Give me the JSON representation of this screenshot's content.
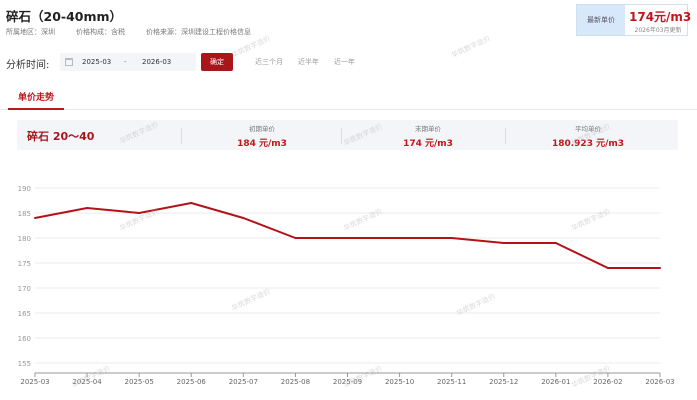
{
  "header": {
    "title": "碎石（20-40mm）",
    "region_label": "所属地区：深圳",
    "price_composition": "价格构成：含税",
    "price_source": "价格来源：深圳建设工程价格信息"
  },
  "latest_price": {
    "label": "最新单价",
    "value": "174元/m3",
    "updated": "2026年03月更新"
  },
  "filter": {
    "label": "分析时间:",
    "start": "2025-03",
    "separator": "-",
    "end": "2026-03",
    "confirm_label": "确定",
    "quick_ranges": [
      "近三个月",
      "近半年",
      "近一年"
    ]
  },
  "tabs": [
    {
      "label": "单价走势",
      "active": true
    }
  ],
  "stats": {
    "material_name": "碎石 20～40",
    "items": [
      {
        "label": "初期单价",
        "value": "184 元/m3"
      },
      {
        "label": "末期单价",
        "value": "174 元/m3"
      },
      {
        "label": "平均单价",
        "value": "180.923 元/m3"
      }
    ]
  },
  "watermark": "华筑数字造价",
  "colors": {
    "accent": "#c0161b",
    "line": "#b31218",
    "grid": "#ebebeb"
  },
  "chart_data": {
    "type": "line",
    "title": "",
    "xlabel": "",
    "ylabel": "",
    "x": [
      "2025-03",
      "2025-04",
      "2025-05",
      "2025-06",
      "2025-07",
      "2025-08",
      "2025-09",
      "2025-10",
      "2025-11",
      "2025-12",
      "2026-01",
      "2026-02",
      "2026-03"
    ],
    "series": [
      {
        "values": [
          184,
          186,
          185,
          187,
          184,
          180,
          180,
          180,
          180,
          179,
          179,
          174,
          174
        ]
      }
    ],
    "y_ticks": [
      155,
      160,
      165,
      170,
      175,
      180,
      185,
      190
    ],
    "ylim": [
      153,
      190
    ],
    "grid": true,
    "legend": "none"
  }
}
